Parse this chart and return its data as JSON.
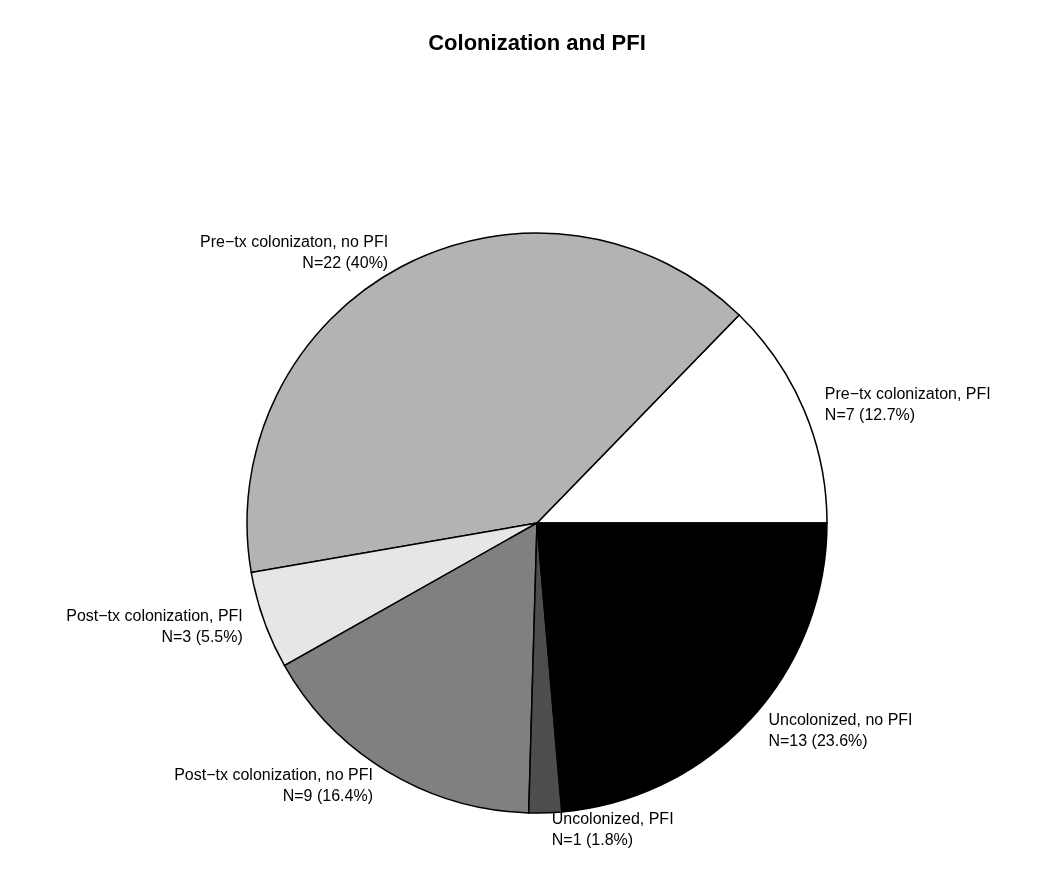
{
  "chart_data": {
    "type": "pie",
    "title": "Colonization and PFI",
    "categories": [
      "Pre−tx colonizaton, PFI",
      "Pre−tx colonizaton, no PFI",
      "Post−tx colonization, PFI",
      "Post−tx colonization, no PFI",
      "Uncolonized, PFI",
      "Uncolonized, no PFI"
    ],
    "values": [
      7,
      22,
      3,
      9,
      1,
      13
    ],
    "colors": [
      "#ffffff",
      "#b3b3b3",
      "#e6e6e6",
      "#808080",
      "#4d4d4d",
      "#000000"
    ],
    "value_labels": [
      "N=7 (12.7%)",
      "N=22 (40%)",
      "N=3 (5.5%)",
      "N=9 (16.4%)",
      "N=1 (1.8%)",
      "N=13 (23.6%)"
    ]
  }
}
